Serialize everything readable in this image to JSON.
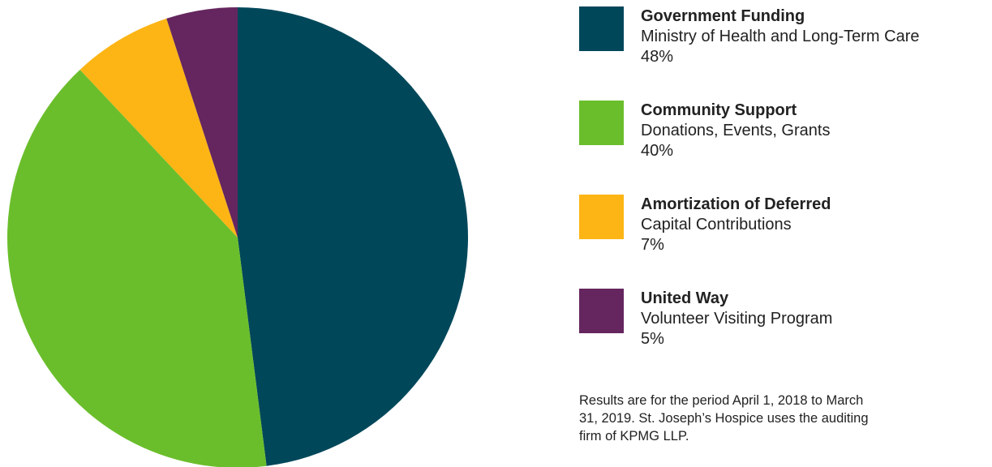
{
  "chart_data": {
    "type": "pie",
    "title": "",
    "slices": [
      {
        "name": "Government Funding",
        "detail": "Ministry of Health and Long-Term Care",
        "value": 48,
        "label": "48%",
        "color": "#00475a"
      },
      {
        "name": "Community Support",
        "detail": "Donations, Events, Grants",
        "value": 40,
        "label": "40%",
        "color": "#6abe2b"
      },
      {
        "name": "Amortization of Deferred",
        "detail": "Capital Contributions",
        "value": 7,
        "label": "7%",
        "color": "#fdb515"
      },
      {
        "name": "United Way",
        "detail": "Volunteer Visiting Program",
        "value": 5,
        "label": "5%",
        "color": "#65265f"
      }
    ],
    "legend_position": "right"
  },
  "footnote": "Results are for the period April 1, 2018 to March 31, 2019. St. Joseph’s Hospice uses the auditing firm of KPMG LLP."
}
